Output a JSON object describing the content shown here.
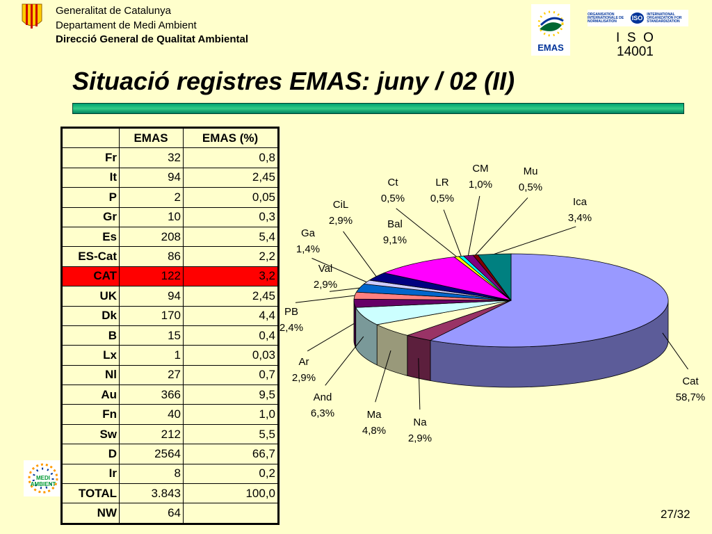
{
  "header": {
    "lines": [
      "Generalitat de Catalunya",
      "Departament de Medi Ambient",
      "Direcció General de Qualitat Ambiental"
    ],
    "emas_logo": "EMAS",
    "iso_fr": "ORGANISATION INTERNATIONALE DE NORMALISATION",
    "iso_logo": "ISO",
    "iso_en": "INTERNATIONAL ORGANIZATION FOR STANDARDIZATION",
    "iso_label": "I  S  O",
    "iso_number": "14001",
    "medi_logo": "MEDI AMBIENT"
  },
  "title": "Situació registres EMAS: juny / 02  (II)",
  "table": {
    "columns": [
      "EMAS",
      "EMAS (%)"
    ],
    "rows": [
      [
        "Fr",
        "32",
        "0,8"
      ],
      [
        "It",
        "94",
        "2,45"
      ],
      [
        "P",
        "2",
        "0,05"
      ],
      [
        "Gr",
        "10",
        "0,3"
      ],
      [
        "Es",
        "208",
        "5,4"
      ],
      [
        "ES-Cat",
        "86",
        "2,2"
      ],
      [
        "CAT",
        "122",
        "3,2"
      ],
      [
        "UK",
        "94",
        "2,45"
      ],
      [
        "Dk",
        "170",
        "4,4"
      ],
      [
        "B",
        "15",
        "0,4"
      ],
      [
        "Lx",
        "1",
        "0,03"
      ],
      [
        "Nl",
        "27",
        "0,7"
      ],
      [
        "Au",
        "366",
        "9,5"
      ],
      [
        "Fn",
        "40",
        "1,0"
      ],
      [
        "Sw",
        "212",
        "5,5"
      ],
      [
        "D",
        "2564",
        "66,7"
      ],
      [
        "Ir",
        "8",
        "0,2"
      ],
      [
        "TOTAL",
        "3.843",
        "100,0"
      ],
      [
        "NW",
        "64"
      ]
    ]
  },
  "chart_data": {
    "type": "pie3d",
    "categories": [
      "Cat",
      "Na",
      "Ma",
      "And",
      "Ar",
      "PB",
      "Val",
      "Ga",
      "CiL",
      "Bal",
      "Ct",
      "LR",
      "CM",
      "Mu",
      "Ica"
    ],
    "values": [
      58.7,
      2.9,
      4.8,
      6.3,
      2.9,
      2.4,
      2.9,
      1.4,
      2.9,
      9.1,
      0.5,
      0.5,
      1.0,
      0.5,
      3.4
    ],
    "value_labels": [
      "58,7%",
      "2,9%",
      "4,8%",
      "6,3%",
      "2,9%",
      "2,4%",
      "2,9%",
      "1,4%",
      "2,9%",
      "9,1%",
      "0,5%",
      "0,5%",
      "1,0%",
      "0,5%",
      "3,4%"
    ],
    "colors": [
      "#9999ff",
      "#993366",
      "#ffffcc",
      "#ccffff",
      "#660066",
      "#ff8080",
      "#0066cc",
      "#ccccff",
      "#000080",
      "#ff00ff",
      "#ffff00",
      "#00ffff",
      "#800080",
      "#800000",
      "#008080"
    ]
  },
  "page": "27/32"
}
